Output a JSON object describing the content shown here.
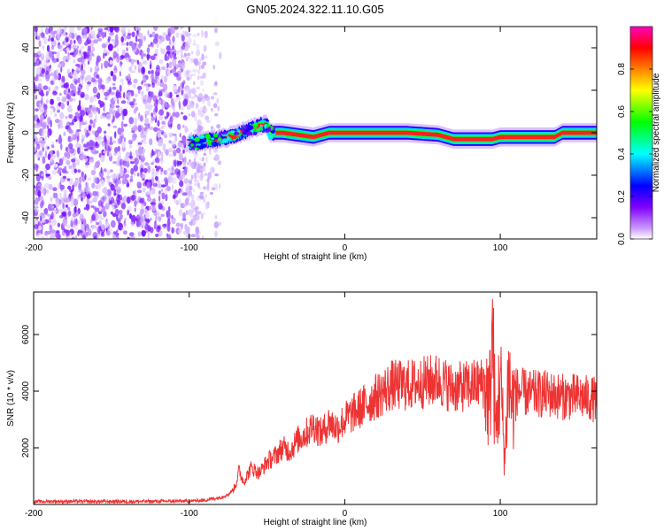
{
  "figure": {
    "title": "GN05.2024.322.11.10.G05"
  },
  "chart_data": [
    {
      "type": "heatmap",
      "xlabel": "Height of straight line (km)",
      "ylabel": "Frequency (Hz)",
      "xlim": [
        -200,
        162
      ],
      "ylim": [
        -50,
        50
      ],
      "xticks": [
        -200,
        -100,
        0,
        100
      ],
      "yticks": [
        -40,
        -20,
        0,
        20,
        40
      ],
      "colorbar": {
        "label": "Normalized spectral amplitude",
        "range": [
          0,
          1
        ],
        "ticks": [
          "0.0",
          "0.2",
          "0.4",
          "0.6",
          "0.8"
        ],
        "colormap": [
          "#ffffff",
          "#cc99ff",
          "#8000ff",
          "#0000ff",
          "#00ffff",
          "#00ff00",
          "#ffff00",
          "#ff8000",
          "#ff0000",
          "#ff00c0"
        ]
      },
      "noise_region_x": [
        -200,
        -90
      ],
      "ridge": {
        "x": [
          -100,
          -90,
          -80,
          -70,
          -60,
          -50,
          -48,
          -40,
          -30,
          -20,
          -10,
          0,
          10,
          20,
          40,
          60,
          70,
          80,
          90,
          95,
          100,
          110,
          120,
          135,
          140,
          162
        ],
        "frequency": [
          -5,
          -4,
          -3,
          -1,
          2,
          4,
          0,
          0,
          -1,
          -2,
          0,
          0,
          0,
          0,
          0,
          -1,
          -3,
          -3,
          -3,
          -3,
          -2,
          -2,
          -2,
          -2,
          0,
          0
        ]
      }
    },
    {
      "type": "line",
      "xlabel": "Height of straight line (km)",
      "ylabel": "SNR (10 * v/v)",
      "xlim": [
        -200,
        162
      ],
      "ylim": [
        0,
        7500
      ],
      "xticks": [
        -200,
        -100,
        0,
        100
      ],
      "yticks": [
        2000,
        4000,
        6000
      ],
      "color": "#ee3333",
      "series": [
        {
          "x": [
            -200,
            -180,
            -160,
            -140,
            -120,
            -100,
            -90,
            -80,
            -75,
            -72,
            -70,
            -68,
            -65,
            -60,
            -55,
            -50,
            -45,
            -40,
            -35,
            -30,
            -25,
            -20,
            -15,
            -10,
            -5,
            0,
            10,
            20,
            30,
            40,
            50,
            60,
            70,
            80,
            90,
            93,
            95,
            97,
            100,
            103,
            105,
            108,
            110,
            120,
            130,
            140,
            150,
            162
          ],
          "values": [
            100,
            110,
            100,
            105,
            110,
            120,
            150,
            250,
            350,
            500,
            700,
            1200,
            800,
            1300,
            1100,
            1500,
            1700,
            2000,
            1900,
            2300,
            2500,
            2800,
            2500,
            2900,
            2700,
            3000,
            3400,
            3800,
            4200,
            4200,
            4300,
            4400,
            4100,
            4200,
            4300,
            3500,
            6000,
            2500,
            4500,
            1500,
            4500,
            3500,
            4000,
            3900,
            3900,
            3800,
            3800,
            3700
          ]
        }
      ]
    }
  ]
}
